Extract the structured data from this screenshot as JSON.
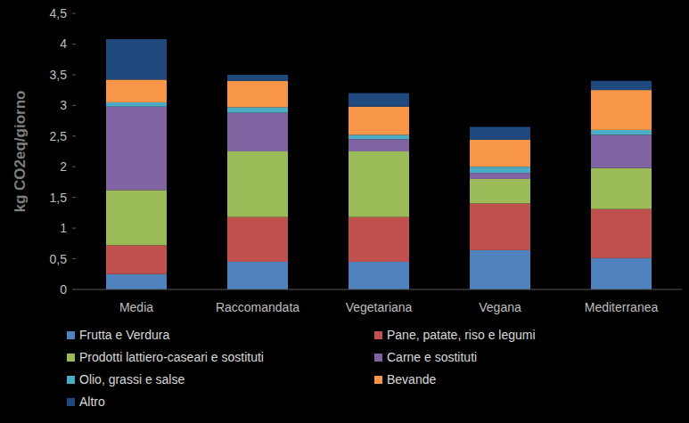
{
  "chart_data": {
    "type": "bar",
    "stacked": true,
    "y_label": "kg CO2eq/giorno",
    "categories": [
      "Media",
      "Raccomandata",
      "Vegetariana",
      "Vegana",
      "Mediterranea"
    ],
    "series": [
      {
        "name": "Frutta e Verdura",
        "color": "#4f81bd",
        "values": [
          0.25,
          0.45,
          0.45,
          0.64,
          0.51
        ]
      },
      {
        "name": "Pane, patate, riso e legumi",
        "color": "#c0504d",
        "values": [
          0.47,
          0.73,
          0.73,
          0.76,
          0.8
        ]
      },
      {
        "name": "Prodotti lattiero-caseari e sostituti",
        "color": "#9bbb59",
        "values": [
          0.9,
          1.07,
          1.07,
          0.4,
          0.67
        ]
      },
      {
        "name": "Carne e sostituti",
        "color": "#8064a2",
        "values": [
          1.36,
          0.63,
          0.2,
          0.1,
          0.54
        ]
      },
      {
        "name": "Olio, grassi e salse",
        "color": "#4bacc6",
        "values": [
          0.07,
          0.09,
          0.07,
          0.1,
          0.08
        ]
      },
      {
        "name": "Bevande",
        "color": "#f79646",
        "values": [
          0.37,
          0.43,
          0.46,
          0.44,
          0.65
        ]
      },
      {
        "name": "Altro",
        "color": "#1f497d",
        "values": [
          0.66,
          0.1,
          0.22,
          0.21,
          0.15
        ]
      }
    ],
    "ylim": [
      0,
      4.5
    ],
    "yticks": [
      0,
      {
        "value": 0.5,
        "label": "0,5"
      },
      1,
      {
        "value": 1.5,
        "label": "1,5"
      },
      2,
      {
        "value": 2.5,
        "label": "2,5"
      },
      3,
      {
        "value": 3.5,
        "label": "3,5"
      },
      4,
      {
        "value": 4.5,
        "label": "4,5"
      }
    ],
    "grid": false,
    "legend": "bottom"
  }
}
